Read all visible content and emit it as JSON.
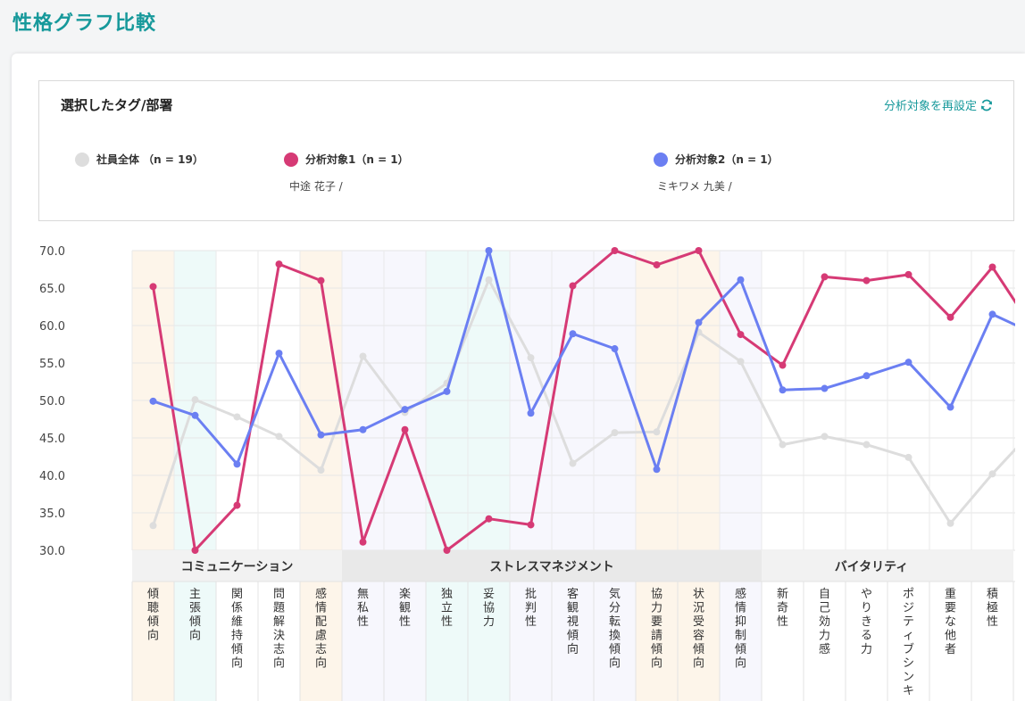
{
  "page": {
    "title": "性格グラフ比較"
  },
  "selection": {
    "heading": "選択したタグ/部署",
    "reset_label": "分析対象を再設定",
    "groups": [
      {
        "label": "社員全体 （n = 19）",
        "color": "#dddddd",
        "members": ""
      },
      {
        "label": "分析対象1（n = 1）",
        "color": "#d63a75",
        "members": "中途 花子 /"
      },
      {
        "label": "分析対象2（n = 1）",
        "color": "#6b7ff2",
        "members": "ミキワメ 九美 /"
      }
    ]
  },
  "chart_data": {
    "type": "line",
    "ylim": [
      30,
      70
    ],
    "yticks": [
      "70.0",
      "65.0",
      "60.0",
      "55.0",
      "50.0",
      "45.0",
      "40.0",
      "35.0",
      "30.0"
    ],
    "categories": [
      "傾聴傾向",
      "主張傾向",
      "関係維持傾向",
      "問題解決志向",
      "感情配慮志向",
      "無私性",
      "楽観性",
      "独立性",
      "妥協力",
      "批判性",
      "客観視傾向",
      "気分転換傾向",
      "協力要請傾向",
      "状況受容傾向",
      "感情抑制傾向",
      "新奇性",
      "自己効力感",
      "やりきる力",
      "ポジティブシンキ",
      "重要な他者",
      "積極性"
    ],
    "category_bg": [
      "#fdf5ea",
      "#eefaf9",
      "#ffffff",
      "#ffffff",
      "#fdf5ea",
      "#f7f7fd",
      "#f7f7fd",
      "#eefaf9",
      "#eefaf9",
      "#f7f7fd",
      "#f7f7fd",
      "#f7f7fd",
      "#fdf5ea",
      "#fdf5ea",
      "#f7f7fd",
      "#ffffff",
      "#ffffff",
      "#ffffff",
      "#ffffff",
      "#ffffff",
      "#ffffff"
    ],
    "groups": [
      {
        "label": "コミュニケーション",
        "start": 0,
        "end": 4,
        "bg": "#f2f2f2"
      },
      {
        "label": "ストレスマネジメント",
        "start": 5,
        "end": 14,
        "bg": "#e9e9e9"
      },
      {
        "label": "バイタリティ",
        "start": 15,
        "end": 20,
        "bg": "#f2f2f2"
      }
    ],
    "series": [
      {
        "color": "#dddddd",
        "values": [
          33.3,
          50.1,
          47.8,
          45.2,
          40.7,
          55.9,
          48.4,
          52.3,
          66.1,
          55.7,
          41.6,
          45.7,
          45.8,
          59.1,
          55.2,
          44.1,
          45.2,
          44.1,
          42.4,
          33.6,
          40.2
        ],
        "tail": 46.2
      },
      {
        "color": "#d63a75",
        "values": [
          65.2,
          30.0,
          36.0,
          68.2,
          66.0,
          31.1,
          46.1,
          30.0,
          34.2,
          33.4,
          65.3,
          70.0,
          68.1,
          70.0,
          58.8,
          54.7,
          66.5,
          66.0,
          66.8,
          61.1,
          67.8
        ],
        "tail": 59.3
      },
      {
        "color": "#6b7ff2",
        "values": [
          49.9,
          48.0,
          41.5,
          56.3,
          45.4,
          46.1,
          48.8,
          51.2,
          70.0,
          48.3,
          58.9,
          56.9,
          40.8,
          60.4,
          66.1,
          51.4,
          51.6,
          53.3,
          55.1,
          49.1,
          61.5
        ],
        "tail": 58.9
      }
    ]
  }
}
